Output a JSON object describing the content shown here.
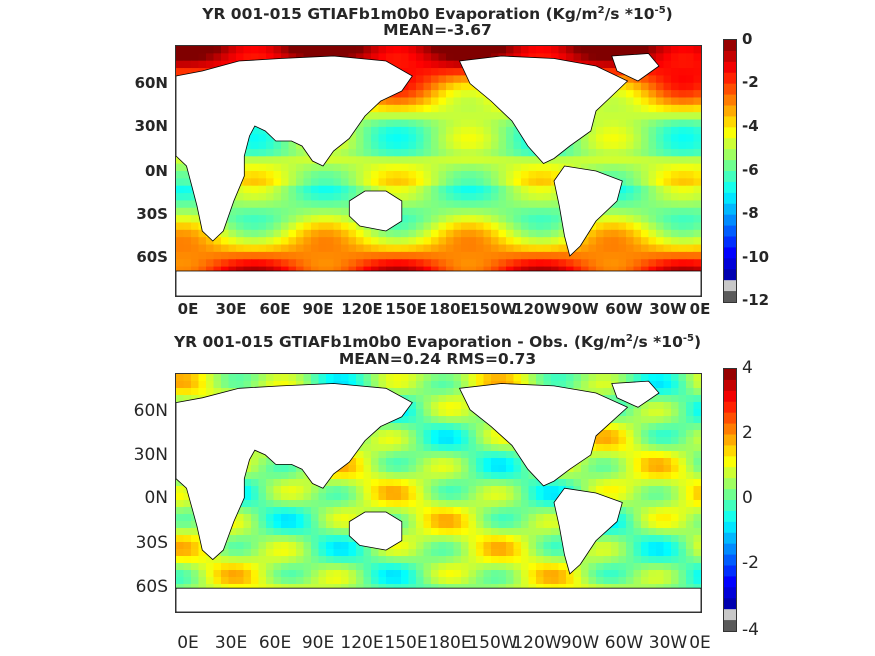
{
  "panel_top": {
    "title_prefix": "YR 001-015 GTIAFb1m0b0  Evaporation (Kg/m",
    "title_sup1": "2",
    "title_mid": "/s *10",
    "title_sup2": "-5",
    "title_suffix": ")",
    "stats": "MEAN=-3.67",
    "lon_ticks": [
      "0E",
      "30E",
      "60E",
      "90E",
      "120E",
      "150E",
      "180E",
      "150W",
      "120W",
      "90W",
      "60W",
      "30W",
      "0E"
    ],
    "lat_ticks": [
      "60N",
      "30N",
      "0N",
      "30S",
      "60S"
    ],
    "colorbar_ticks": [
      "0",
      "-2",
      "-4",
      "-6",
      "-8",
      "-10",
      "-12"
    ],
    "colorbar_range": [
      -12,
      0
    ]
  },
  "panel_bottom": {
    "title_prefix": "YR 001-015 GTIAFb1m0b0 Evaporation - Obs. (Kg/m",
    "title_sup1": "2",
    "title_mid": "/s *10",
    "title_sup2": "-5",
    "title_suffix": ")",
    "stats": "MEAN=0.24   RMS=0.73",
    "lon_ticks": [
      "0E",
      "30E",
      "60E",
      "90E",
      "120E",
      "150E",
      "180E",
      "150W",
      "120W",
      "90W",
      "60W",
      "30W",
      "0E"
    ],
    "lat_ticks": [
      "60N",
      "30N",
      "0N",
      "30S",
      "60S"
    ],
    "colorbar_ticks": [
      "4",
      "2",
      "0",
      "-2",
      "-4"
    ],
    "colorbar_range": [
      -4,
      4
    ]
  },
  "colors": {
    "land": "#ffffff",
    "coast": "#000000",
    "jet": [
      "#00008f",
      "#0000ff",
      "#0080ff",
      "#00ffff",
      "#80ff80",
      "#ffff00",
      "#ff8000",
      "#ff0000",
      "#800000"
    ],
    "colorbar_low_end": "#5a5a5a",
    "colorbar_low_grey": "#c8c8c8"
  }
}
